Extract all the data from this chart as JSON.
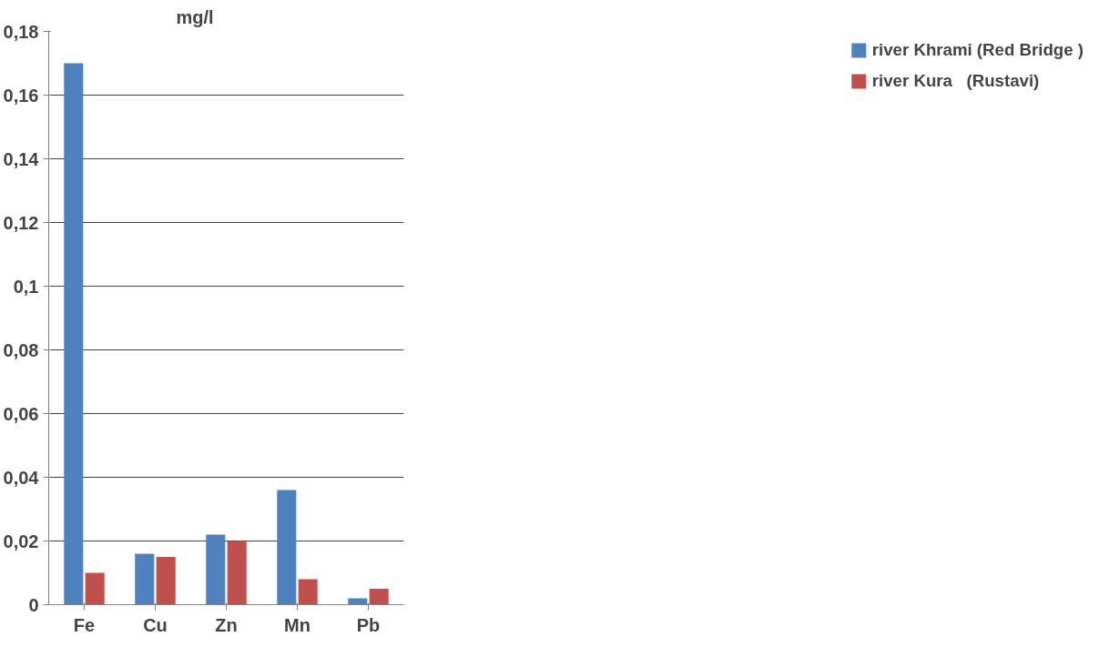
{
  "chart_data": {
    "type": "bar",
    "ylabel": "mg/l",
    "categories": [
      "Fe",
      "Cu",
      "Zn",
      "Mn",
      "Pb"
    ],
    "series": [
      {
        "name": "river Khrami (Red Bridge )",
        "color": "#4f81bd",
        "values": [
          0.17,
          0.016,
          0.022,
          0.036,
          0.002
        ]
      },
      {
        "name": "river Kura   (Rustavi)",
        "color": "#c0504d",
        "values": [
          0.01,
          0.015,
          0.02,
          0.008,
          0.005
        ]
      }
    ],
    "ylim": [
      0,
      0.18
    ],
    "yticks": [
      {
        "value": 0,
        "label": "0"
      },
      {
        "value": 0.02,
        "label": "0,02"
      },
      {
        "value": 0.04,
        "label": "0,04"
      },
      {
        "value": 0.06,
        "label": "0,06"
      },
      {
        "value": 0.08,
        "label": "0,08"
      },
      {
        "value": 0.1,
        "label": "0,1"
      },
      {
        "value": 0.12,
        "label": "0,12"
      },
      {
        "value": 0.14,
        "label": "0,14"
      },
      {
        "value": 0.16,
        "label": "0,16"
      },
      {
        "value": 0.18,
        "label": "0,18"
      }
    ],
    "grid": "y",
    "legend": "right"
  }
}
